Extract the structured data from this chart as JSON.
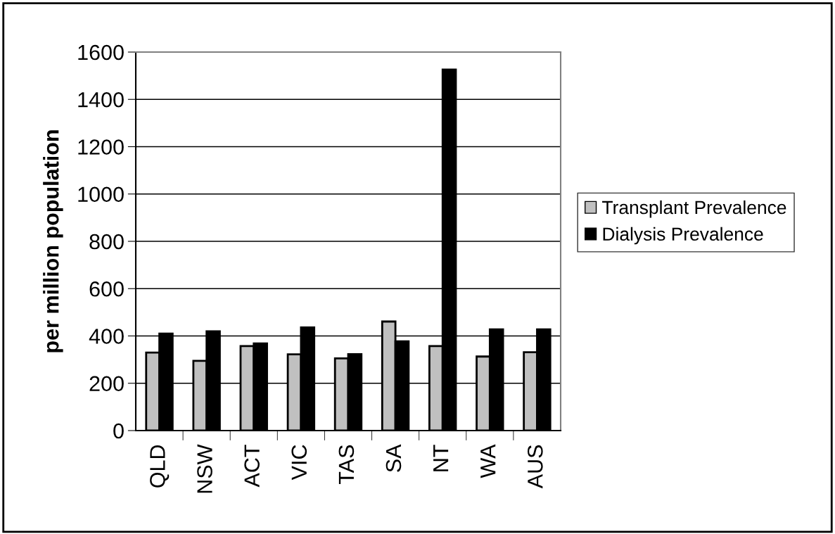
{
  "chart_data": {
    "type": "bar",
    "ylabel": "per million population",
    "categories": [
      "QLD",
      "NSW",
      "ACT",
      "VIC",
      "TAS",
      "SA",
      "NT",
      "WA",
      "AUS"
    ],
    "series": [
      {
        "name": "Transplant Prevalence",
        "color": "#c0c0c0",
        "values": [
          330,
          295,
          357,
          322,
          305,
          461,
          357,
          313,
          331
        ]
      },
      {
        "name": "Dialysis Prevalence",
        "color": "#000000",
        "values": [
          410,
          420,
          368,
          436,
          323,
          377,
          1526,
          428,
          428
        ]
      }
    ],
    "ylim": [
      0,
      1600
    ],
    "yticks": [
      0,
      200,
      400,
      600,
      800,
      1000,
      1200,
      1400,
      1600
    ],
    "grid": "y",
    "legend": "right"
  }
}
